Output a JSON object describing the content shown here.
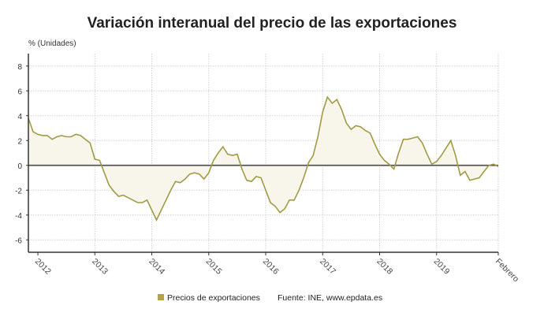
{
  "chart_data": {
    "type": "area",
    "title": "Variación interanual del precio de las exportaciones",
    "ylabel": "% (Unidades)",
    "ylim": [
      -7,
      9
    ],
    "yticks": [
      -6,
      -4,
      -2,
      0,
      2,
      4,
      6,
      8
    ],
    "xticks": [
      {
        "label": "2012",
        "x": "2012-01"
      },
      {
        "label": "2013",
        "x": "2013-01"
      },
      {
        "label": "2014",
        "x": "2014-01"
      },
      {
        "label": "2015",
        "x": "2015-01"
      },
      {
        "label": "2016",
        "x": "2016-01"
      },
      {
        "label": "2017",
        "x": "2017-01"
      },
      {
        "label": "2018",
        "x": "2018-01"
      },
      {
        "label": "2019",
        "x": "2019-01"
      },
      {
        "label": "Febrero",
        "x": "2020-02"
      }
    ],
    "grid": true,
    "legend_position": "bottom",
    "source": "Fuente: INE, www.epdata.es",
    "colors": {
      "line": "#a19a45",
      "fill": "#f8f6ea",
      "zero": "#555555",
      "legend": "#b0a34a"
    },
    "series": [
      {
        "name": "Precios de exportaciones",
        "x": [
          "2011-11",
          "2011-12",
          "2012-01",
          "2012-02",
          "2012-03",
          "2012-04",
          "2012-05",
          "2012-06",
          "2012-07",
          "2012-08",
          "2012-09",
          "2012-10",
          "2012-11",
          "2012-12",
          "2013-01",
          "2013-02",
          "2013-03",
          "2013-04",
          "2013-05",
          "2013-06",
          "2013-07",
          "2013-08",
          "2013-09",
          "2013-10",
          "2013-11",
          "2013-12",
          "2014-01",
          "2014-02",
          "2014-03",
          "2014-04",
          "2014-05",
          "2014-06",
          "2014-07",
          "2014-08",
          "2014-09",
          "2014-10",
          "2014-11",
          "2014-12",
          "2015-01",
          "2015-02",
          "2015-03",
          "2015-04",
          "2015-05",
          "2015-06",
          "2015-07",
          "2015-08",
          "2015-09",
          "2015-10",
          "2015-11",
          "2015-12",
          "2016-01",
          "2016-02",
          "2016-03",
          "2016-04",
          "2016-05",
          "2016-06",
          "2016-07",
          "2016-08",
          "2016-09",
          "2016-10",
          "2016-11",
          "2016-12",
          "2017-01",
          "2017-02",
          "2017-03",
          "2017-04",
          "2017-05",
          "2017-06",
          "2017-07",
          "2017-08",
          "2017-09",
          "2017-10",
          "2017-11",
          "2017-12",
          "2018-01",
          "2018-02",
          "2018-03",
          "2018-04",
          "2018-05",
          "2018-06",
          "2018-07",
          "2018-08",
          "2018-09",
          "2018-10",
          "2018-11",
          "2018-12",
          "2019-01",
          "2019-02",
          "2019-03",
          "2019-04",
          "2019-05",
          "2019-06",
          "2019-07",
          "2019-08",
          "2019-09",
          "2019-10",
          "2019-11",
          "2019-12",
          "2020-01",
          "2020-02"
        ],
        "values": [
          3.8,
          2.7,
          2.5,
          2.4,
          2.4,
          2.1,
          2.3,
          2.4,
          2.3,
          2.3,
          2.5,
          2.4,
          2.1,
          1.8,
          0.5,
          0.4,
          -0.6,
          -1.6,
          -2.1,
          -2.5,
          -2.4,
          -2.6,
          -2.8,
          -3.0,
          -3.0,
          -2.8,
          -3.6,
          -4.4,
          -3.6,
          -2.8,
          -2.0,
          -1.3,
          -1.4,
          -1.1,
          -0.7,
          -0.6,
          -0.7,
          -1.1,
          -0.6,
          0.4,
          1.0,
          1.5,
          0.9,
          0.8,
          0.9,
          -0.3,
          -1.2,
          -1.3,
          -0.9,
          -1.0,
          -2.0,
          -3.0,
          -3.3,
          -3.8,
          -3.5,
          -2.8,
          -2.8,
          -2.0,
          -1.0,
          0.2,
          0.8,
          2.3,
          4.3,
          5.5,
          5.0,
          5.3,
          4.5,
          3.4,
          2.9,
          3.2,
          3.1,
          2.8,
          2.6,
          1.7,
          0.9,
          0.4,
          0.1,
          -0.3,
          1.0,
          2.1,
          2.1,
          2.2,
          2.3,
          1.8,
          0.9,
          0.1,
          0.3,
          0.8,
          1.4,
          2.0,
          0.8,
          -0.8,
          -0.5,
          -1.2,
          -1.1,
          -1.0,
          -0.5,
          0.0,
          0.1,
          -0.1
        ]
      }
    ]
  }
}
